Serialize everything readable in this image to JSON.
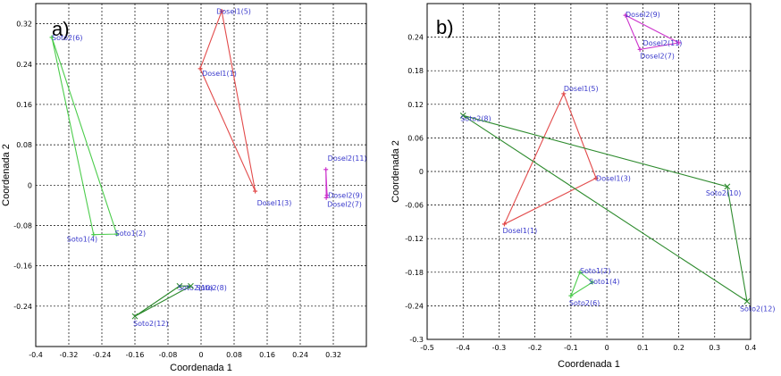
{
  "chart_data": [
    {
      "type": "scatter",
      "panel_label": "a)",
      "xlabel": "Coordenada 1",
      "ylabel": "Coordenada 2",
      "xlim": [
        -0.4,
        0.4
      ],
      "ylim": [
        -0.32,
        0.36
      ],
      "x_ticks": [
        "-0.4",
        "-0.32",
        "-0.24",
        "-0.16",
        "-0.08",
        "0",
        "0.08",
        "0.16",
        "0.24",
        "0.32"
      ],
      "x_tick_values": [
        -0.4,
        -0.32,
        -0.24,
        -0.16,
        -0.08,
        0,
        0.08,
        0.16,
        0.24,
        0.32
      ],
      "y_ticks": [
        "0.32",
        "0.24",
        "0.16",
        "0.08",
        "0",
        "-0.08",
        "-0.16",
        "-0.24"
      ],
      "y_tick_values": [
        0.32,
        0.24,
        0.16,
        0.08,
        0,
        -0.08,
        -0.16,
        -0.24
      ],
      "groups": [
        {
          "name": "Dosel1",
          "color": "#e24a4a",
          "marker": "+",
          "points": [
            {
              "label": "Dosel1(5)",
              "x": 0.05,
              "y": 0.345,
              "lx": 0,
              "ly": 0
            },
            {
              "label": "Dosel1(1)",
              "x": -0.002,
              "y": 0.231,
              "lx": 0,
              "ly": 0
            },
            {
              "label": "Dosel1(3)",
              "x": 0.131,
              "y": -0.012,
              "lx": 0,
              "ly": 0
            }
          ]
        },
        {
          "name": "Soto1",
          "color": "#4ccc4c",
          "marker": "+",
          "points": [
            {
              "label": "Soto2(6)",
              "x": -0.361,
              "y": 0.293,
              "lx": 0,
              "ly": 0
            },
            {
              "label": "Soto1(4)",
              "x": -0.26,
              "y": -0.098,
              "lx": 0,
              "ly": 0
            },
            {
              "label": "Soto1(2)",
              "x": -0.204,
              "y": -0.097,
              "lx": 0,
              "ly": 0
            }
          ]
        },
        {
          "name": "Soto2",
          "color": "#2e8b2e",
          "marker": "x",
          "points": [
            {
              "label": "Soto2(12)",
              "x": -0.16,
              "y": -0.26,
              "lx": 0,
              "ly": 0
            },
            {
              "label": "Soto2(10)",
              "x": -0.052,
              "y": -0.2,
              "lx": 0,
              "ly": 0
            },
            {
              "label": "Soto2(8)",
              "x": -0.025,
              "y": -0.2,
              "lx": 0,
              "ly": 0
            }
          ]
        },
        {
          "name": "Dosel2",
          "color": "#cc33cc",
          "marker": "+",
          "points": [
            {
              "label": "Dosel2(11)",
              "x": 0.302,
              "y": 0.031,
              "lx": 0,
              "ly": 0
            },
            {
              "label": "Dosel2(9)",
              "x": 0.305,
              "y": -0.02,
              "lx": 0,
              "ly": 0
            },
            {
              "label": "Dosel2(7)",
              "x": 0.303,
              "y": -0.025,
              "lx": 0,
              "ly": 0
            }
          ]
        }
      ]
    },
    {
      "type": "scatter",
      "panel_label": "b)",
      "xlabel": "Coordenada 1",
      "ylabel": "Coordenada 2",
      "xlim": [
        -0.5,
        0.4
      ],
      "ylim": [
        -0.3,
        0.3
      ],
      "x_ticks": [
        "-0.5",
        "-0.4",
        "-0.3",
        "-0.2",
        "-0.1",
        "0",
        "0.1",
        "0.2",
        "0.3",
        "0.4"
      ],
      "x_tick_values": [
        -0.5,
        -0.4,
        -0.3,
        -0.2,
        -0.1,
        0,
        0.1,
        0.2,
        0.3,
        0.4
      ],
      "y_ticks": [
        "0.24",
        "0.18",
        "0.12",
        "0.06",
        "0",
        "-0.06",
        "-0.12",
        "-0.18",
        "-0.24",
        "-0.3"
      ],
      "y_tick_values": [
        0.24,
        0.18,
        0.12,
        0.06,
        0,
        -0.06,
        -0.12,
        -0.18,
        -0.24,
        -0.3
      ],
      "groups": [
        {
          "name": "Dosel2",
          "color": "#cc33cc",
          "marker": "+",
          "points": [
            {
              "label": "Dosel2(9)",
              "x": 0.052,
              "y": 0.279
            },
            {
              "label": "Dosel2(11)",
              "x": 0.2,
              "y": 0.23
            },
            {
              "label": "Dosel2(7)",
              "x": 0.092,
              "y": 0.218
            }
          ]
        },
        {
          "name": "Dosel1",
          "color": "#e24a4a",
          "marker": "+",
          "points": [
            {
              "label": "Dosel1(5)",
              "x": -0.12,
              "y": 0.139
            },
            {
              "label": "Dosel1(3)",
              "x": -0.03,
              "y": -0.012
            },
            {
              "label": "Dosel1(1)",
              "x": -0.285,
              "y": -0.094
            }
          ]
        },
        {
          "name": "Soto2",
          "color": "#2e8b2e",
          "marker": "x",
          "points": [
            {
              "label": "Soto2(8)",
              "x": -0.4,
              "y": 0.1
            },
            {
              "label": "Soto2(10)",
              "x": 0.335,
              "y": -0.027
            },
            {
              "label": "Soto2(12)",
              "x": 0.39,
              "y": -0.232
            }
          ]
        },
        {
          "name": "Soto1",
          "color": "#4ccc4c",
          "marker": "+",
          "points": [
            {
              "label": "Soto1(2)",
              "x": -0.075,
              "y": -0.18
            },
            {
              "label": "Soto1(4)",
              "x": -0.04,
              "y": -0.198
            },
            {
              "label": "Soto2(6)",
              "x": -0.1,
              "y": -0.222
            }
          ]
        }
      ]
    }
  ]
}
